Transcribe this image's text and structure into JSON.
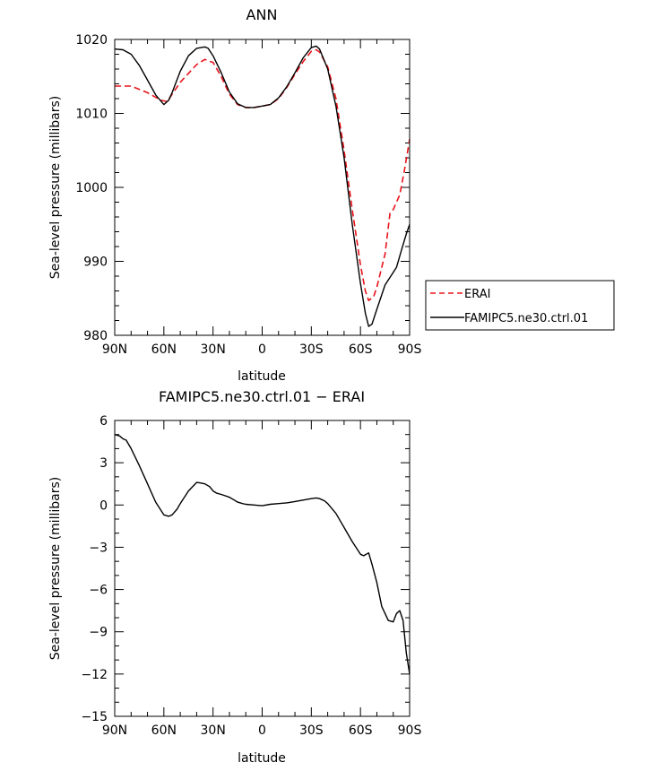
{
  "chart_data": [
    {
      "type": "line",
      "title": "ANN",
      "xlabel": "latitude",
      "ylabel": "Sea-level pressure (millibars)",
      "xlim": [
        90,
        -90
      ],
      "ylim": [
        980,
        1020
      ],
      "x_ticks": [
        90,
        60,
        30,
        0,
        -30,
        -60,
        -90
      ],
      "x_tick_labels": [
        "90N",
        "60N",
        "30N",
        "0",
        "30S",
        "60S",
        "90S"
      ],
      "y_ticks": [
        980,
        990,
        1000,
        1010,
        1020
      ],
      "y_tick_labels": [
        "980",
        "990",
        "1000",
        "1010",
        "1020"
      ],
      "legend": "right",
      "grid": false,
      "series": [
        {
          "name": "ERAI",
          "color": "#e8141b",
          "dash": true,
          "x": [
            90,
            80,
            70,
            62,
            58,
            50,
            40,
            35,
            30,
            25,
            20,
            15,
            10,
            5,
            0,
            -5,
            -10,
            -15,
            -20,
            -25,
            -30,
            -33,
            -35,
            -40,
            -45,
            -50,
            -55,
            -60,
            -63,
            -65,
            -68,
            -70,
            -75,
            -78,
            -80,
            -84,
            -87,
            -90
          ],
          "y": [
            1013.7,
            1013.7,
            1012.8,
            1011.8,
            1011.6,
            1014.2,
            1016.6,
            1017.3,
            1016.9,
            1015.0,
            1012.6,
            1011.2,
            1010.8,
            1010.8,
            1011.0,
            1011.2,
            1012.0,
            1013.5,
            1015.3,
            1017.0,
            1018.4,
            1018.6,
            1018.3,
            1016.3,
            1012.0,
            1005.0,
            997.0,
            989.5,
            986.0,
            984.7,
            985.2,
            986.5,
            991.0,
            996.5,
            997.0,
            999.0,
            1002.5,
            1006.5
          ]
        },
        {
          "name": "FAMIPC5.ne30.ctrl.01",
          "color": "#000000",
          "dash": false,
          "x": [
            90,
            85,
            80,
            75,
            70,
            65,
            60,
            57,
            55,
            50,
            45,
            40,
            35,
            33,
            30,
            25,
            20,
            15,
            10,
            5,
            0,
            -5,
            -10,
            -15,
            -20,
            -25,
            -30,
            -33,
            -35,
            -40,
            -45,
            -50,
            -55,
            -60,
            -63,
            -65,
            -67,
            -70,
            -75,
            -80,
            -82,
            -85,
            -88,
            -90
          ],
          "y": [
            1018.7,
            1018.6,
            1018.0,
            1016.5,
            1014.5,
            1012.5,
            1011.2,
            1011.8,
            1012.8,
            1015.7,
            1017.8,
            1018.8,
            1019.0,
            1018.8,
            1017.8,
            1015.5,
            1012.9,
            1011.3,
            1010.8,
            1010.8,
            1011.0,
            1011.2,
            1012.1,
            1013.6,
            1015.5,
            1017.5,
            1018.9,
            1019.1,
            1018.7,
            1016.0,
            1011.0,
            1004.0,
            995.0,
            987.0,
            983.0,
            981.2,
            981.5,
            983.5,
            986.8,
            988.5,
            989.2,
            991.5,
            993.7,
            995.0
          ]
        }
      ]
    },
    {
      "type": "line",
      "title": "FAMIPC5.ne30.ctrl.01 − ERAI",
      "xlabel": "latitude",
      "ylabel": "Sea-level pressure (millibars)",
      "xlim": [
        90,
        -90
      ],
      "ylim": [
        -15,
        6
      ],
      "x_ticks": [
        90,
        60,
        30,
        0,
        -30,
        -60,
        -90
      ],
      "x_tick_labels": [
        "90N",
        "60N",
        "30N",
        "0",
        "30S",
        "60S",
        "90S"
      ],
      "y_ticks": [
        -15,
        -12,
        -9,
        -6,
        -3,
        0,
        3,
        6
      ],
      "y_tick_labels": [
        "−15",
        "−12",
        "−9",
        "−6",
        "−3",
        "0",
        "3",
        "6"
      ],
      "grid": false,
      "series": [
        {
          "name": "",
          "color": "#000000",
          "dash": false,
          "x": [
            90,
            87,
            85,
            83,
            80,
            75,
            70,
            65,
            60,
            57,
            55,
            52,
            50,
            45,
            40,
            37,
            35,
            32,
            30,
            28,
            25,
            20,
            17,
            15,
            12,
            10,
            5,
            0,
            -5,
            -10,
            -15,
            -20,
            -25,
            -30,
            -33,
            -35,
            -38,
            -40,
            -45,
            -50,
            -55,
            -60,
            -62,
            -65,
            -67,
            -70,
            -73,
            -75,
            -77,
            -80,
            -82,
            -84,
            -86,
            -88,
            -90
          ],
          "y": [
            5.0,
            4.9,
            4.7,
            4.6,
            4.0,
            2.8,
            1.5,
            0.2,
            -0.7,
            -0.8,
            -0.7,
            -0.3,
            0.1,
            1.0,
            1.6,
            1.55,
            1.5,
            1.3,
            1.0,
            0.85,
            0.75,
            0.55,
            0.35,
            0.2,
            0.1,
            0.05,
            0.0,
            -0.05,
            0.05,
            0.1,
            0.15,
            0.25,
            0.35,
            0.45,
            0.5,
            0.45,
            0.3,
            0.1,
            -0.6,
            -1.6,
            -2.6,
            -3.5,
            -3.6,
            -3.4,
            -4.2,
            -5.5,
            -7.2,
            -7.7,
            -8.2,
            -8.3,
            -7.7,
            -7.5,
            -8.2,
            -10.5,
            -12.0
          ]
        }
      ]
    }
  ]
}
